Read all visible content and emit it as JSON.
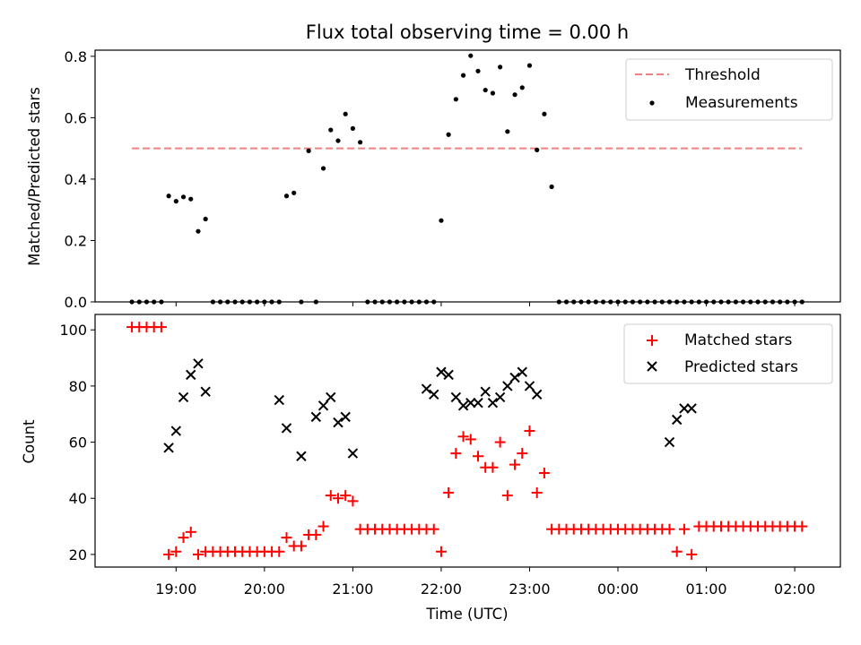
{
  "chart_data": [
    {
      "type": "scatter",
      "title": "Flux total observing time = 0.00 h",
      "xlabel": "",
      "ylabel": "Matched/Predicted stars",
      "xlim": [
        "18:05",
        "02:31"
      ],
      "ylim": [
        0,
        0.82
      ],
      "yticks": [
        "0.0",
        "0.2",
        "0.4",
        "0.6",
        "0.8"
      ],
      "legend": {
        "position": "top-right",
        "entries": [
          "Threshold",
          "Measurements"
        ]
      },
      "threshold": {
        "name": "Threshold",
        "value": 0.5,
        "x_start": "18:30",
        "x_end": "02:05",
        "color": "#f08080"
      },
      "series": [
        {
          "name": "Measurements",
          "color": "#000000",
          "x": [
            "18:30",
            "18:35",
            "18:40",
            "18:45",
            "18:50",
            "18:55",
            "19:00",
            "19:05",
            "19:10",
            "19:15",
            "19:20",
            "19:25",
            "19:30",
            "19:35",
            "19:40",
            "19:45",
            "19:50",
            "19:55",
            "20:00",
            "20:05",
            "20:10",
            "20:15",
            "20:20",
            "20:25",
            "20:30",
            "20:35",
            "20:40",
            "20:45",
            "20:50",
            "20:55",
            "21:00",
            "21:05",
            "21:10",
            "21:15",
            "21:20",
            "21:25",
            "21:30",
            "21:35",
            "21:40",
            "21:45",
            "21:50",
            "21:55",
            "22:00",
            "22:05",
            "22:10",
            "22:15",
            "22:20",
            "22:25",
            "22:30",
            "22:35",
            "22:40",
            "22:45",
            "22:50",
            "22:55",
            "23:00",
            "23:05",
            "23:10",
            "23:15",
            "23:20",
            "23:25",
            "23:30",
            "23:35",
            "23:40",
            "23:45",
            "23:50",
            "23:55",
            "00:00",
            "00:05",
            "00:10",
            "00:15",
            "00:20",
            "00:25",
            "00:30",
            "00:35",
            "00:40",
            "00:45",
            "00:50",
            "00:55",
            "01:00",
            "01:05",
            "01:10",
            "01:15",
            "01:20",
            "01:25",
            "01:30",
            "01:35",
            "01:40",
            "01:45",
            "01:50",
            "01:55",
            "02:00",
            "02:05"
          ],
          "y": [
            0,
            0,
            0,
            0,
            0,
            0.345,
            0.328,
            0.342,
            0.335,
            0.23,
            0.27,
            0,
            0,
            0,
            0,
            0,
            0,
            0,
            0,
            0,
            0,
            0.345,
            0.355,
            0,
            0.492,
            0,
            0.435,
            0.56,
            0.525,
            0.612,
            0.565,
            0.52,
            0,
            0,
            0,
            0,
            0,
            0,
            0,
            0,
            0,
            0,
            0.265,
            0.545,
            0.66,
            0.738,
            0.802,
            0.752,
            0.69,
            0.68,
            0.765,
            0.555,
            0.675,
            0.698,
            0.77,
            0.495,
            0.612,
            0.375,
            0,
            0,
            0,
            0,
            0,
            0,
            0,
            0,
            0,
            0,
            0,
            0,
            0,
            0,
            0,
            0,
            0,
            0,
            0,
            0,
            0,
            0,
            0,
            0,
            0,
            0,
            0,
            0,
            0,
            0,
            0,
            0,
            0,
            0
          ]
        }
      ]
    },
    {
      "type": "scatter",
      "title": "",
      "xlabel": "Time (UTC)",
      "ylabel": "Count",
      "xlim": [
        "18:05",
        "02:31"
      ],
      "ylim": [
        15.5,
        105.5
      ],
      "yticks": [
        "20",
        "40",
        "60",
        "80",
        "100"
      ],
      "xticks": [
        "19:00",
        "20:00",
        "21:00",
        "22:00",
        "23:00",
        "00:00",
        "01:00",
        "02:00"
      ],
      "legend": {
        "position": "top-right",
        "entries": [
          "Matched stars",
          "Predicted stars"
        ]
      },
      "series": [
        {
          "name": "Matched stars",
          "marker": "plus",
          "color": "#ff0000",
          "x": [
            "18:30",
            "18:35",
            "18:40",
            "18:45",
            "18:50",
            "18:55",
            "19:00",
            "19:05",
            "19:10",
            "19:15",
            "19:20",
            "19:25",
            "19:30",
            "19:35",
            "19:40",
            "19:45",
            "19:50",
            "19:55",
            "20:00",
            "20:05",
            "20:10",
            "20:15",
            "20:20",
            "20:25",
            "20:30",
            "20:35",
            "20:40",
            "20:45",
            "20:50",
            "20:55",
            "21:00",
            "21:05",
            "21:10",
            "21:15",
            "21:20",
            "21:25",
            "21:30",
            "21:35",
            "21:40",
            "21:45",
            "21:50",
            "21:55",
            "22:00",
            "22:05",
            "22:10",
            "22:15",
            "22:20",
            "22:25",
            "22:30",
            "22:35",
            "22:40",
            "22:45",
            "22:50",
            "22:55",
            "23:00",
            "23:05",
            "23:10",
            "23:15",
            "23:20",
            "23:25",
            "23:30",
            "23:35",
            "23:40",
            "23:45",
            "23:50",
            "23:55",
            "00:00",
            "00:05",
            "00:10",
            "00:15",
            "00:20",
            "00:25",
            "00:30",
            "00:35",
            "00:40",
            "00:45",
            "00:50",
            "00:55",
            "01:00",
            "01:05",
            "01:10",
            "01:15",
            "01:20",
            "01:25",
            "01:30",
            "01:35",
            "01:40",
            "01:45",
            "01:50",
            "01:55",
            "02:00",
            "02:05"
          ],
          "y": [
            101,
            101,
            101,
            101,
            101,
            20,
            21,
            26,
            28,
            20,
            21,
            21,
            21,
            21,
            21,
            21,
            21,
            21,
            21,
            21,
            21,
            26,
            23,
            23,
            27,
            27,
            30,
            41,
            40,
            41,
            39,
            29,
            29,
            29,
            29,
            29,
            29,
            29,
            29,
            29,
            29,
            29,
            21,
            42,
            56,
            62,
            61,
            55,
            51,
            51,
            60,
            41,
            52,
            56,
            64,
            42,
            49,
            29,
            29,
            29,
            29,
            29,
            29,
            29,
            29,
            29,
            29,
            29,
            29,
            29,
            29,
            29,
            29,
            29,
            21,
            29,
            20,
            30,
            30,
            30,
            30,
            30,
            30,
            30,
            30,
            30,
            30,
            30,
            30,
            30,
            30,
            30
          ]
        },
        {
          "name": "Predicted stars",
          "marker": "x",
          "color": "#000000",
          "x": [
            "18:55",
            "19:00",
            "19:05",
            "19:10",
            "19:15",
            "19:20",
            "20:10",
            "20:15",
            "20:25",
            "20:35",
            "20:40",
            "20:45",
            "20:50",
            "20:55",
            "21:00",
            "21:50",
            "21:55",
            "22:00",
            "22:05",
            "22:10",
            "22:15",
            "22:20",
            "22:25",
            "22:30",
            "22:35",
            "22:40",
            "22:45",
            "22:50",
            "22:55",
            "23:00",
            "23:05",
            "00:35",
            "00:40",
            "00:45",
            "00:50"
          ],
          "y": [
            58,
            64,
            76,
            84,
            88,
            78,
            75,
            65,
            55,
            69,
            73,
            76,
            67,
            69,
            56,
            79,
            77,
            85,
            84,
            76,
            73,
            74,
            74,
            78,
            74,
            76,
            80,
            83,
            85,
            80,
            77,
            60,
            68,
            72,
            72
          ]
        }
      ]
    }
  ]
}
